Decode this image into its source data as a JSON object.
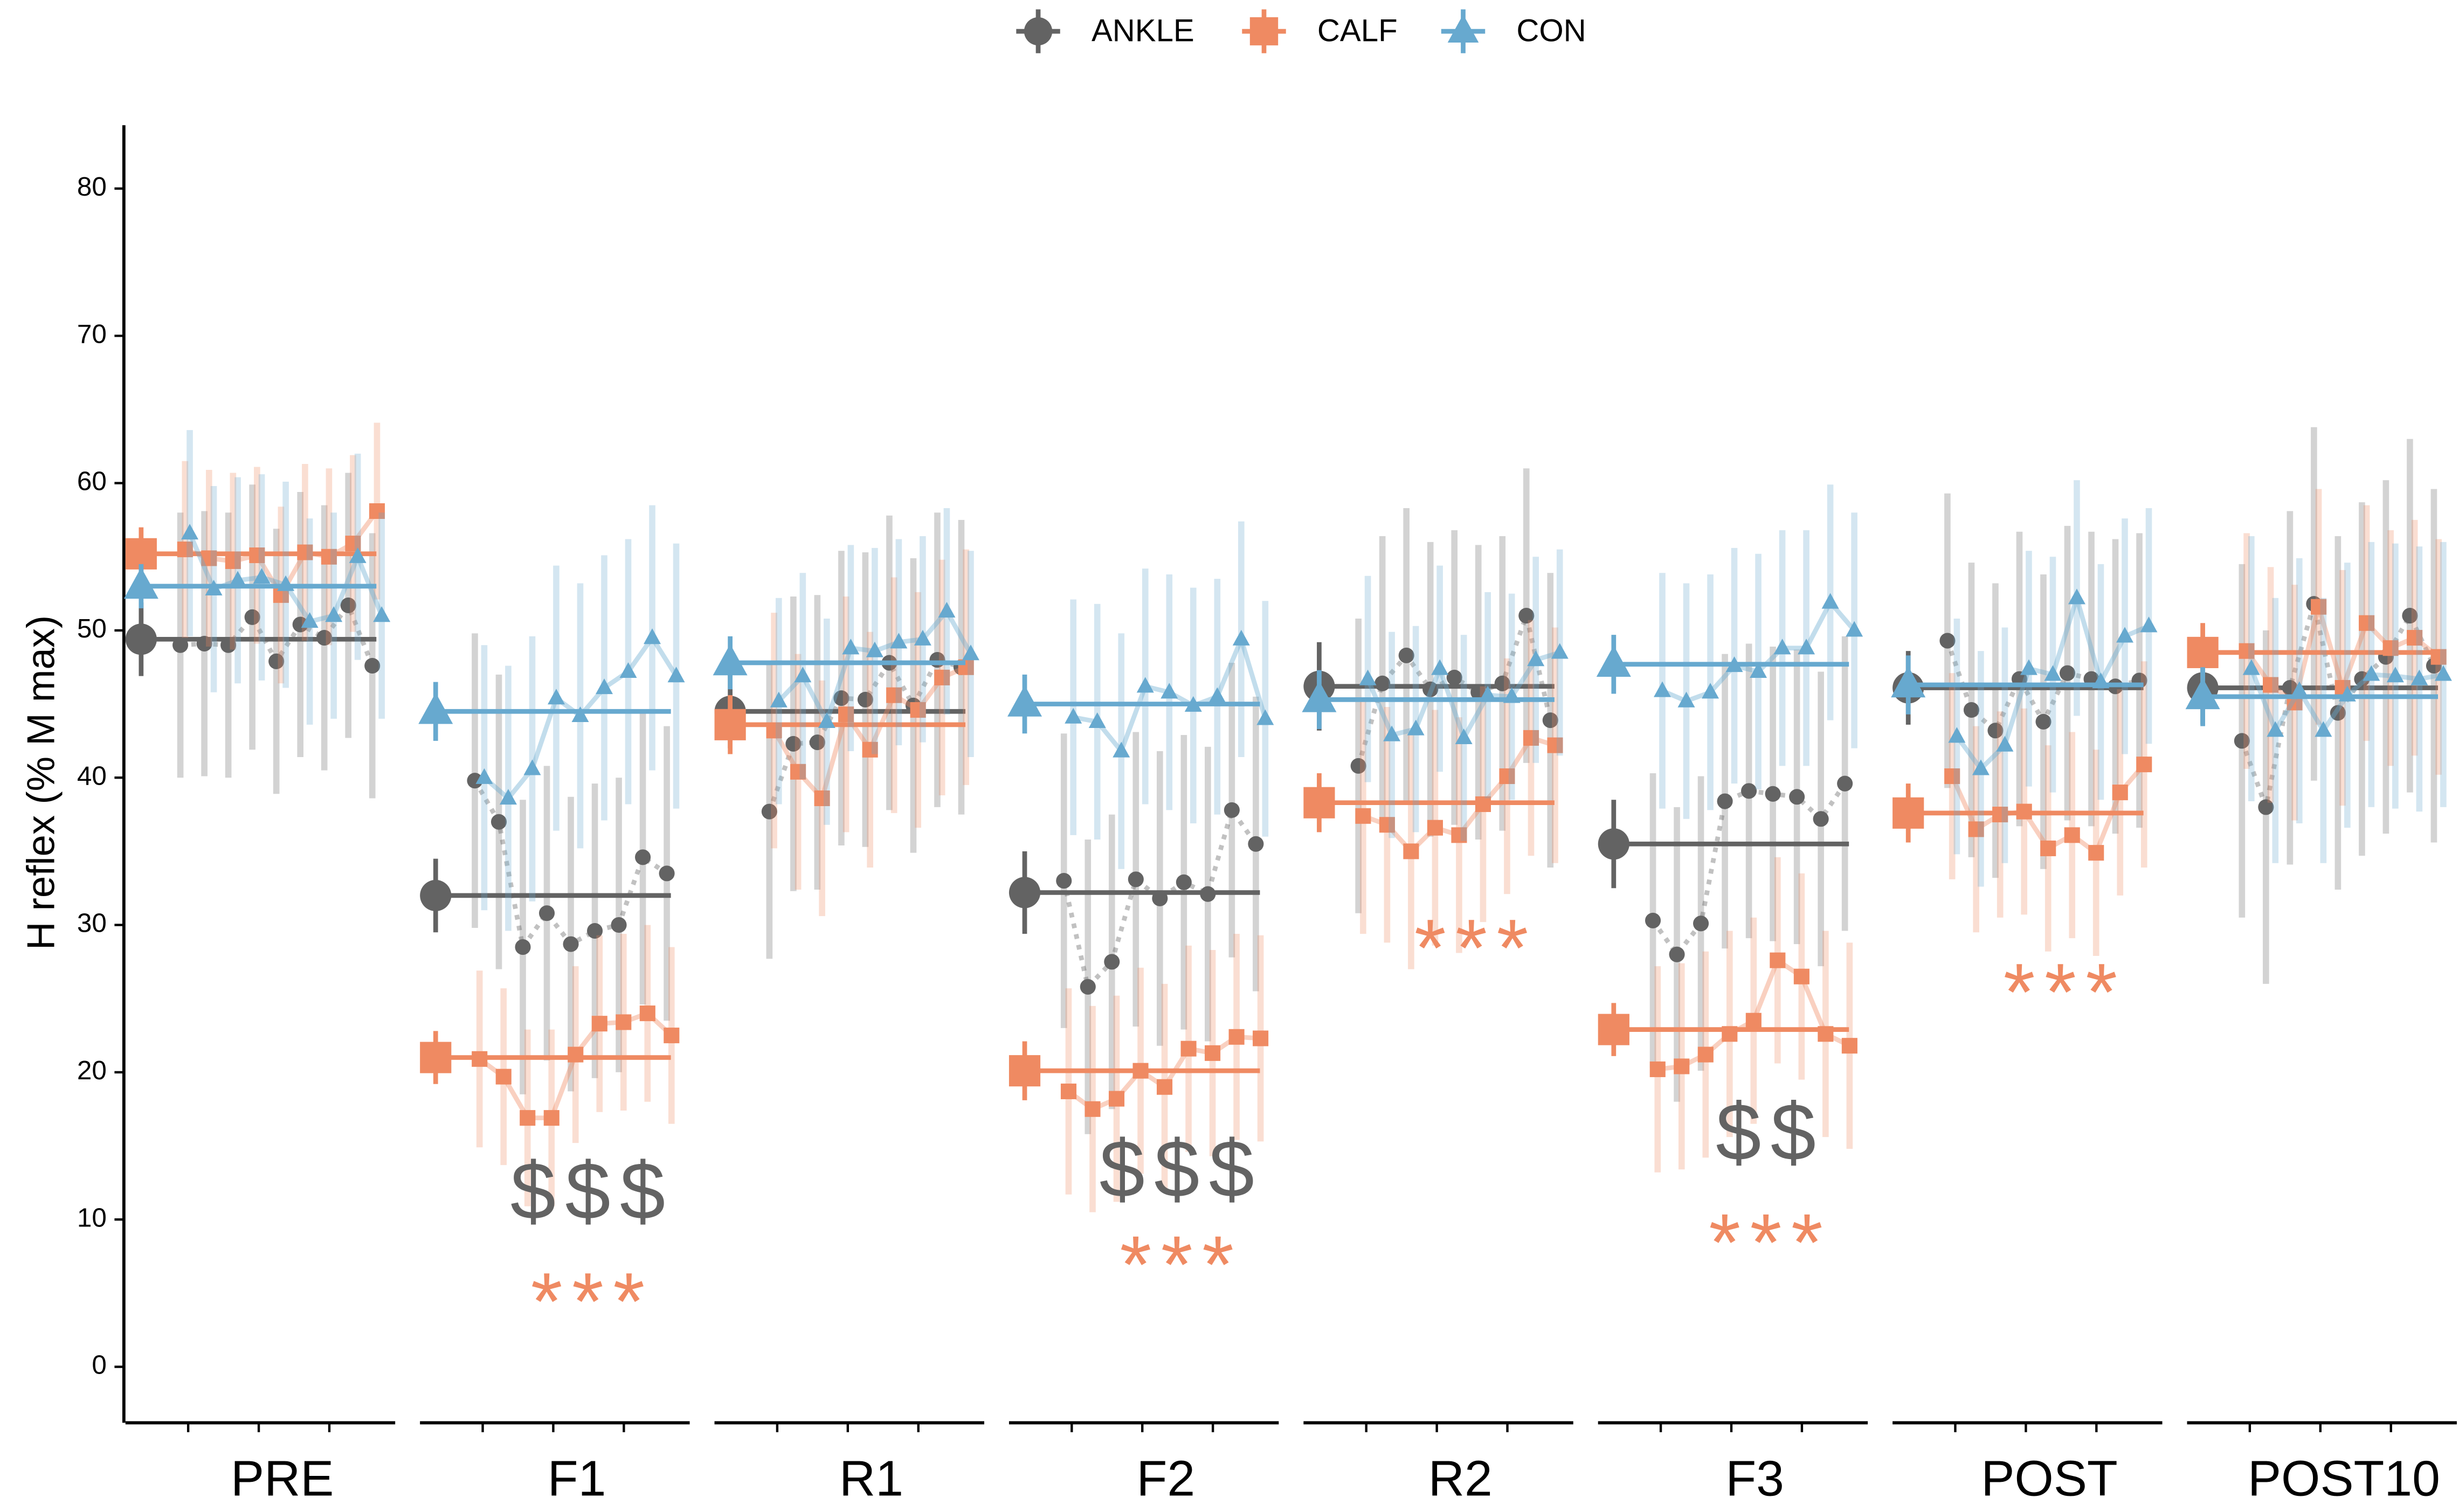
{
  "chart_data": {
    "type": "dot",
    "y_label": "H reflex (% M max)",
    "ylim": [
      -3.8,
      84.3
    ],
    "yticks": [
      0,
      10,
      20,
      30,
      40,
      50,
      60,
      70,
      80
    ],
    "panels": [
      "PRE",
      "F1",
      "R1",
      "F2",
      "R2",
      "F3",
      "POST",
      "POST10"
    ],
    "series": [
      {
        "name": "ANKLE",
        "color": "#636363",
        "marker": "circle",
        "line": "dotted",
        "means": [
          49.4,
          32,
          44.5,
          32.2,
          46.2,
          35.5,
          46.1,
          46.1
        ],
        "mean_errors": [
          2.5,
          2.5,
          2.5,
          2.8,
          3,
          3,
          2.5,
          2.5
        ],
        "point_errors": [
          9,
          10,
          10,
          10,
          10,
          10,
          10,
          12
        ],
        "points": [
          [
            49,
            49.1,
            49,
            50.9,
            47.9,
            50.4,
            49.5,
            51.7,
            47.6
          ],
          [
            39.8,
            37,
            28.5,
            30.8,
            28.7,
            29.6,
            30,
            34.6,
            33.5
          ],
          [
            37.7,
            42.3,
            42.4,
            45.4,
            45.3,
            47.8,
            44.9,
            48,
            47.5
          ],
          [
            33,
            25.8,
            27.5,
            33.1,
            31.8,
            32.9,
            32.1,
            37.8,
            35.5
          ],
          [
            40.8,
            46.4,
            48.3,
            46,
            46.8,
            45.8,
            46.4,
            51,
            43.9
          ],
          [
            30.3,
            28,
            30.1,
            38.4,
            39.1,
            38.9,
            38.7,
            37.2,
            39.6
          ],
          [
            49.3,
            44.6,
            43.2,
            46.7,
            43.8,
            47.1,
            46.7,
            46.2,
            46.6
          ],
          [
            42.5,
            38,
            46.1,
            51.8,
            44.4,
            46.7,
            48.2,
            51,
            47.6
          ]
        ]
      },
      {
        "name": "CALF",
        "color": "#ef8a62",
        "marker": "square",
        "line": "solid",
        "means": [
          55.2,
          21,
          43.6,
          20.1,
          38.3,
          22.9,
          37.6,
          48.5
        ],
        "mean_errors": [
          1.8,
          1.8,
          2,
          2,
          2,
          1.8,
          2,
          2
        ],
        "point_errors": [
          6,
          6,
          8,
          7,
          8,
          7,
          7,
          8
        ],
        "points": [
          [
            55.5,
            54.9,
            54.7,
            55.1,
            52.4,
            55.3,
            55,
            55.9,
            58.1
          ],
          [
            20.9,
            19.7,
            16.9,
            16.9,
            21.2,
            23.3,
            23.4,
            24,
            22.5
          ],
          [
            43.2,
            40.4,
            38.6,
            44.3,
            41.9,
            45.6,
            44.6,
            46.8,
            47.5
          ],
          [
            18.7,
            17.5,
            18.2,
            20.1,
            19,
            21.6,
            21.3,
            22.4,
            22.3
          ],
          [
            37.4,
            36.8,
            35,
            36.6,
            36.1,
            38.2,
            40.1,
            42.7,
            42.2
          ],
          [
            20.2,
            20.4,
            21.2,
            22.6,
            23.5,
            27.6,
            26.5,
            22.6,
            21.8
          ],
          [
            40.1,
            36.5,
            37.5,
            37.7,
            35.2,
            36.1,
            34.9,
            39,
            40.9
          ],
          [
            48.6,
            46.3,
            45.1,
            51.6,
            46.1,
            50.5,
            48.8,
            49.5,
            48.2
          ]
        ]
      },
      {
        "name": "CON",
        "color": "#67a9cf",
        "marker": "triangle",
        "line": "solid",
        "means": [
          53,
          44.5,
          47.8,
          45,
          45.3,
          47.7,
          46.3,
          45.5
        ],
        "mean_errors": [
          1.5,
          2,
          1.8,
          2,
          2,
          2,
          2,
          2
        ],
        "point_errors": [
          7,
          9,
          7,
          8,
          7,
          8,
          8,
          9
        ],
        "points": [
          [
            56.6,
            52.8,
            53.4,
            53.6,
            53.1,
            50.6,
            51,
            55,
            51
          ],
          [
            40,
            38.6,
            40.6,
            45.4,
            44.2,
            46.1,
            47.2,
            49.5,
            46.9
          ],
          [
            45.2,
            46.9,
            43.8,
            48.8,
            48.6,
            49.2,
            49.4,
            51.3,
            48.4
          ],
          [
            44.1,
            43.8,
            41.8,
            46.2,
            45.8,
            44.9,
            45.5,
            49.4,
            44
          ],
          [
            46.7,
            42.9,
            43.3,
            47.4,
            42.7,
            45.6,
            45.5,
            48,
            48.5
          ],
          [
            45.9,
            45.2,
            45.8,
            47.6,
            47.2,
            48.8,
            48.8,
            51.9,
            50
          ],
          [
            42.8,
            40.6,
            42.2,
            47.4,
            47,
            52.2,
            46.5,
            49.6,
            50.3
          ],
          [
            47.4,
            43.2,
            45.9,
            43.2,
            45.6,
            47,
            46.9,
            46.7,
            47
          ]
        ]
      }
    ],
    "annotations": [
      {
        "panel": 1,
        "text": "$$$",
        "y": 11.5,
        "color": "#636363"
      },
      {
        "panel": 1,
        "text": "***",
        "y": 4,
        "color": "#ef8a62"
      },
      {
        "panel": 3,
        "text": "$$$",
        "y": 13,
        "color": "#636363"
      },
      {
        "panel": 3,
        "text": "***",
        "y": 6.5,
        "color": "#ef8a62"
      },
      {
        "panel": 4,
        "text": "***",
        "y": 28,
        "color": "#ef8a62"
      },
      {
        "panel": 5,
        "text": "$$",
        "y": 15.5,
        "color": "#636363"
      },
      {
        "panel": 5,
        "text": "***",
        "y": 8,
        "color": "#ef8a62"
      },
      {
        "panel": 6,
        "text": "***",
        "y": 25,
        "color": "#ef8a62"
      }
    ]
  }
}
